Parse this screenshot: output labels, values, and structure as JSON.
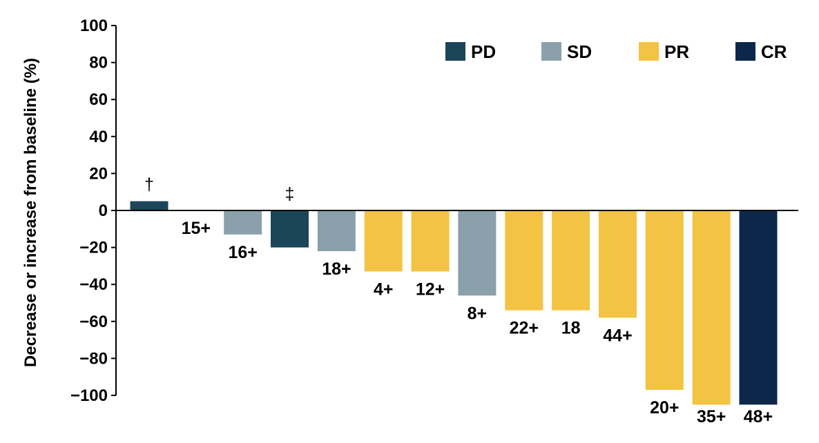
{
  "chart_data": {
    "type": "bar",
    "ylabel": "Decrease or increase from baseline (%)",
    "ylim": [
      -100,
      100
    ],
    "yticks": [
      "100",
      "80",
      "60",
      "40",
      "20",
      "0",
      "−20",
      "−40",
      "−60",
      "−80",
      "−100"
    ],
    "ytick_values": [
      100,
      80,
      60,
      40,
      20,
      0,
      -20,
      -40,
      -60,
      -80,
      -100
    ],
    "grid": false,
    "legend_position": "top-right",
    "legend": [
      {
        "key": "PD",
        "label": "PD",
        "color": "#1b4559"
      },
      {
        "key": "SD",
        "label": "SD",
        "color": "#8aa1ab"
      },
      {
        "key": "PR",
        "label": "PR",
        "color": "#f3c343"
      },
      {
        "key": "CR",
        "label": "CR",
        "color": "#0d274b"
      }
    ],
    "bars": [
      {
        "value": 5,
        "category": "PD",
        "label": "",
        "marker": "†"
      },
      {
        "value": 0,
        "category": "SD",
        "label": "15+",
        "marker": ""
      },
      {
        "value": -13,
        "category": "SD",
        "label": "16+",
        "marker": ""
      },
      {
        "value": -20,
        "category": "PD",
        "label": "",
        "marker": "‡"
      },
      {
        "value": -22,
        "category": "SD",
        "label": "18+",
        "marker": ""
      },
      {
        "value": -33,
        "category": "PR",
        "label": "4+",
        "marker": ""
      },
      {
        "value": -33,
        "category": "PR",
        "label": "12+",
        "marker": ""
      },
      {
        "value": -46,
        "category": "SD",
        "label": "8+",
        "marker": ""
      },
      {
        "value": -54,
        "category": "PR",
        "label": "22+",
        "marker": ""
      },
      {
        "value": -54,
        "category": "PR",
        "label": "18",
        "marker": ""
      },
      {
        "value": -58,
        "category": "PR",
        "label": "44+",
        "marker": ""
      },
      {
        "value": -97,
        "category": "PR",
        "label": "20+",
        "marker": ""
      },
      {
        "value": -105,
        "category": "PR",
        "label": "35+",
        "marker": ""
      },
      {
        "value": -105,
        "category": "CR",
        "label": "48+",
        "marker": ""
      }
    ]
  }
}
